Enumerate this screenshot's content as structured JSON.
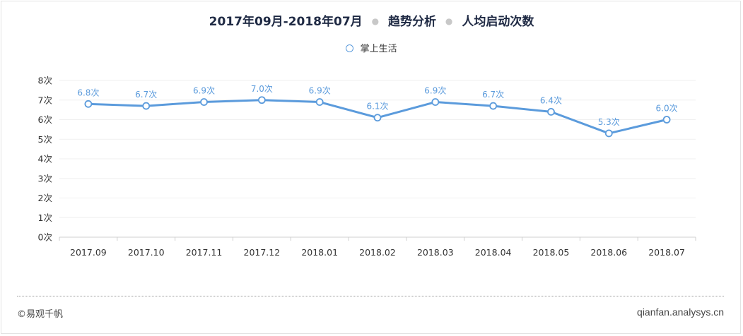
{
  "header": {
    "period": "2017年09月-2018年07月",
    "analysis": "趋势分析",
    "metric": "人均启动次数"
  },
  "chart_data": {
    "type": "line",
    "categories": [
      "2017.09",
      "2017.10",
      "2017.11",
      "2017.12",
      "2018.01",
      "2018.02",
      "2018.03",
      "2018.04",
      "2018.05",
      "2018.06",
      "2018.07"
    ],
    "series": [
      {
        "name": "掌上生活",
        "values": [
          6.8,
          6.7,
          6.9,
          7.0,
          6.9,
          6.1,
          6.9,
          6.7,
          6.4,
          5.3,
          6.0
        ]
      }
    ],
    "value_suffix": "次",
    "ylim": [
      0,
      8
    ],
    "yticks": [
      0,
      1,
      2,
      3,
      4,
      5,
      6,
      7,
      8
    ],
    "grid": true,
    "legend": "top-center",
    "color": "#5b9bdc"
  },
  "footer": {
    "copyright": "©易观千帆",
    "site": "qianfan.analysys.cn"
  }
}
